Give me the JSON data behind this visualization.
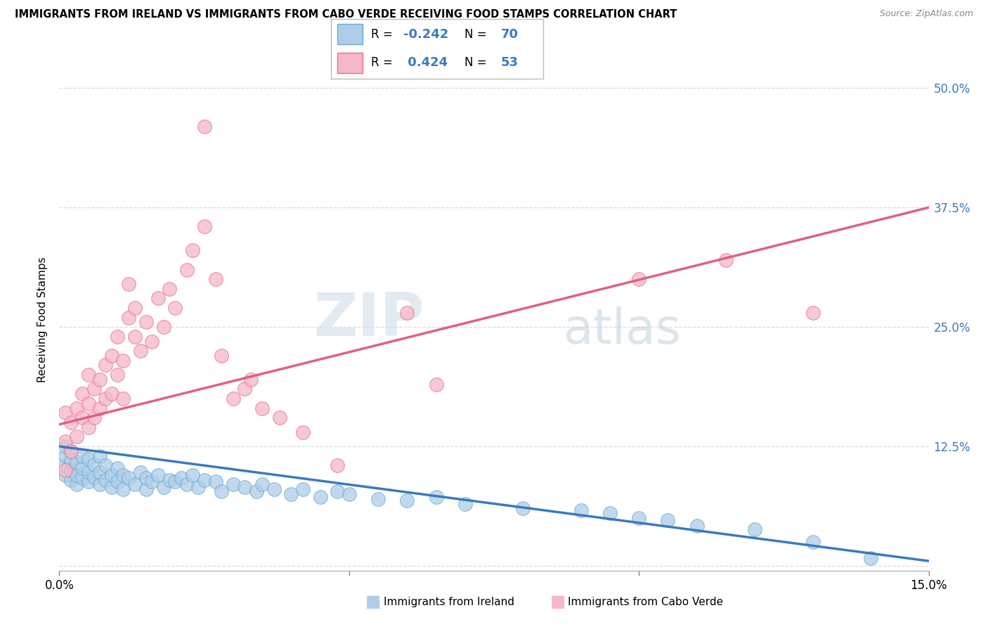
{
  "title": "IMMIGRANTS FROM IRELAND VS IMMIGRANTS FROM CABO VERDE RECEIVING FOOD STAMPS CORRELATION CHART",
  "source": "Source: ZipAtlas.com",
  "ylabel": "Receiving Food Stamps",
  "xlim": [
    0.0,
    0.15
  ],
  "ylim": [
    -0.005,
    0.52
  ],
  "yticks": [
    0.0,
    0.125,
    0.25,
    0.375,
    0.5
  ],
  "ytick_labels": [
    "",
    "12.5%",
    "25.0%",
    "37.5%",
    "50.0%"
  ],
  "ireland_R": -0.242,
  "ireland_N": 70,
  "caboverde_R": 0.424,
  "caboverde_N": 53,
  "ireland_dot_color": "#aecde8",
  "ireland_edge_color": "#6aaad4",
  "ireland_line_color": "#3a7abf",
  "caboverde_dot_color": "#f5b8c8",
  "caboverde_edge_color": "#e87090",
  "caboverde_line_color": "#e06080",
  "watermark_color": "#ccdcec",
  "grid_color": "#cccccc",
  "background_color": "#ffffff",
  "ireland_x": [
    0.001,
    0.001,
    0.001,
    0.001,
    0.002,
    0.002,
    0.002,
    0.002,
    0.003,
    0.003,
    0.003,
    0.004,
    0.004,
    0.004,
    0.005,
    0.005,
    0.005,
    0.006,
    0.006,
    0.007,
    0.007,
    0.007,
    0.008,
    0.008,
    0.009,
    0.009,
    0.01,
    0.01,
    0.011,
    0.011,
    0.012,
    0.013,
    0.014,
    0.015,
    0.015,
    0.016,
    0.017,
    0.018,
    0.019,
    0.02,
    0.021,
    0.022,
    0.023,
    0.024,
    0.025,
    0.027,
    0.028,
    0.03,
    0.032,
    0.034,
    0.035,
    0.037,
    0.04,
    0.042,
    0.045,
    0.048,
    0.05,
    0.055,
    0.06,
    0.065,
    0.07,
    0.08,
    0.09,
    0.095,
    0.1,
    0.105,
    0.11,
    0.12,
    0.13,
    0.14
  ],
  "ireland_y": [
    0.095,
    0.105,
    0.115,
    0.125,
    0.09,
    0.1,
    0.11,
    0.12,
    0.085,
    0.095,
    0.108,
    0.092,
    0.102,
    0.115,
    0.088,
    0.098,
    0.112,
    0.093,
    0.106,
    0.085,
    0.098,
    0.115,
    0.09,
    0.105,
    0.082,
    0.095,
    0.088,
    0.102,
    0.08,
    0.095,
    0.092,
    0.085,
    0.098,
    0.08,
    0.092,
    0.088,
    0.095,
    0.082,
    0.09,
    0.088,
    0.092,
    0.085,
    0.095,
    0.082,
    0.09,
    0.088,
    0.078,
    0.085,
    0.082,
    0.078,
    0.085,
    0.08,
    0.075,
    0.08,
    0.072,
    0.078,
    0.075,
    0.07,
    0.068,
    0.072,
    0.065,
    0.06,
    0.058,
    0.055,
    0.05,
    0.048,
    0.042,
    0.038,
    0.025,
    0.008
  ],
  "caboverde_x": [
    0.001,
    0.001,
    0.001,
    0.002,
    0.002,
    0.003,
    0.003,
    0.004,
    0.004,
    0.005,
    0.005,
    0.005,
    0.006,
    0.006,
    0.007,
    0.007,
    0.008,
    0.008,
    0.009,
    0.009,
    0.01,
    0.01,
    0.011,
    0.011,
    0.012,
    0.012,
    0.013,
    0.013,
    0.014,
    0.015,
    0.016,
    0.017,
    0.018,
    0.019,
    0.02,
    0.022,
    0.023,
    0.025,
    0.025,
    0.027,
    0.028,
    0.03,
    0.032,
    0.033,
    0.035,
    0.038,
    0.042,
    0.048,
    0.06,
    0.065,
    0.1,
    0.115,
    0.13
  ],
  "caboverde_y": [
    0.1,
    0.13,
    0.16,
    0.12,
    0.15,
    0.135,
    0.165,
    0.155,
    0.18,
    0.145,
    0.17,
    0.2,
    0.155,
    0.185,
    0.165,
    0.195,
    0.175,
    0.21,
    0.18,
    0.22,
    0.2,
    0.24,
    0.175,
    0.215,
    0.26,
    0.295,
    0.24,
    0.27,
    0.225,
    0.255,
    0.235,
    0.28,
    0.25,
    0.29,
    0.27,
    0.31,
    0.33,
    0.355,
    0.46,
    0.3,
    0.22,
    0.175,
    0.185,
    0.195,
    0.165,
    0.155,
    0.14,
    0.105,
    0.265,
    0.19,
    0.3,
    0.32,
    0.265
  ]
}
